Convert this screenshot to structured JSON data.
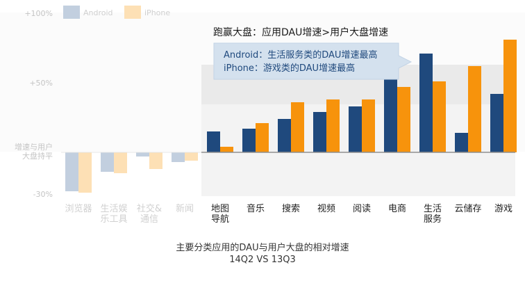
{
  "chart_data": {
    "type": "bar",
    "title": "主要分类应用的DAU与用户大盘的相对增速",
    "subtitle": "14Q2 VS 13Q3",
    "yticks": [
      {
        "value": 100,
        "label": "+100%"
      },
      {
        "value": 50,
        "label": "+50%"
      },
      {
        "value": 0,
        "label": "增速与用户\n大盘持平"
      },
      {
        "value": -30,
        "label": "-30%"
      }
    ],
    "ylim": [
      -30,
      100
    ],
    "legend_position": "top-left",
    "categories": [
      "浏览器",
      "生活娱\n乐工具",
      "社交&\n通信",
      "新闻",
      "地图\n导航",
      "音乐",
      "搜索",
      "视频",
      "阅读",
      "电商",
      "生活\n服务",
      "云储存",
      "游戏"
    ],
    "highlighted_from_index": 4,
    "series": [
      {
        "name": "Android",
        "color": "#1f497d",
        "faded_color": "#c2cfdf",
        "values": [
          -28,
          -14,
          -3,
          -7,
          15,
          17,
          24,
          29,
          33,
          55,
          71,
          14,
          42
        ]
      },
      {
        "name": "iPhone",
        "color": "#f7930c",
        "faded_color": "#fde0b5",
        "values": [
          -29,
          -15,
          -12,
          -6,
          4,
          21,
          36,
          38,
          38,
          47,
          51,
          62,
          81
        ]
      }
    ],
    "annotation": {
      "title": "跑赢大盘：应用DAU增速>用户大盘增速",
      "lines": [
        "Android：生活服务类的DAU增速最高",
        "iPhone：游戏类的DAU增速最高"
      ]
    }
  }
}
